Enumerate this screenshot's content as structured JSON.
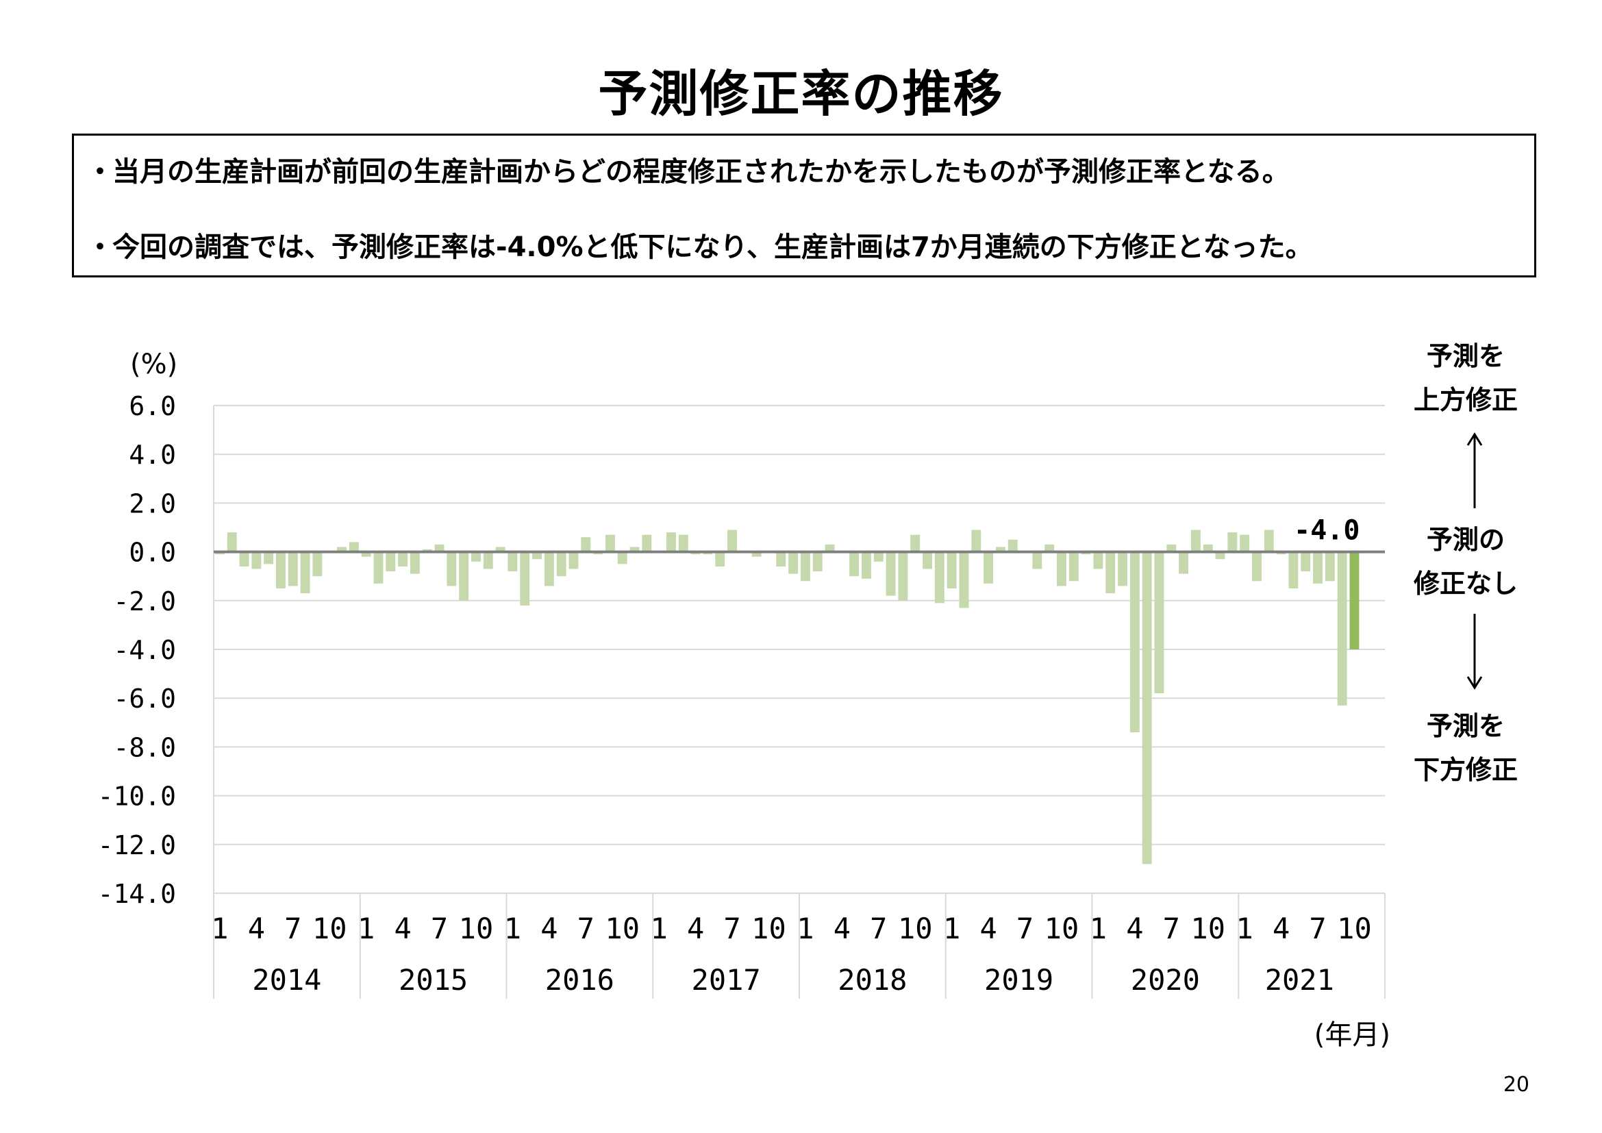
{
  "title": "予測修正率の推移",
  "notes": [
    "当月の生産計画が前回の生産計画からどの程度修正されたかを示したものが予測修正率となる。",
    "今回の調査では、予測修正率は-4.0%と低下になり、生産計画は7か月連続の下方修正となった。"
  ],
  "bullet": "・",
  "side_labels": {
    "up": "予測を\n上方修正",
    "none": "予測の\n修正なし",
    "down": "予測を\n下方修正"
  },
  "page_number": "20",
  "chart_data": {
    "type": "bar",
    "ylabel": "(%)",
    "xlabel": "(年月)",
    "ylim": [
      -14,
      6
    ],
    "yticks": [
      "6.0",
      "4.0",
      "2.0",
      "0.0",
      "-2.0",
      "-4.0",
      "-6.0",
      "-8.0",
      "-10.0",
      "-12.0",
      "-14.0"
    ],
    "grid": true,
    "month_ticks": [
      "1",
      "4",
      "7",
      "10"
    ],
    "years": [
      "2014",
      "2015",
      "2016",
      "2017",
      "2018",
      "2019",
      "2020",
      "2021"
    ],
    "start": "2014-01",
    "end": "2021-10",
    "values": [
      -0.1,
      0.8,
      -0.6,
      -0.7,
      -0.5,
      -1.5,
      -1.4,
      -1.7,
      -1.0,
      0.0,
      0.2,
      0.4,
      -0.2,
      -1.3,
      -0.8,
      -0.6,
      -0.9,
      0.1,
      0.3,
      -1.4,
      -2.0,
      -0.4,
      -0.7,
      0.2,
      -0.8,
      -2.2,
      -0.3,
      -1.4,
      -1.0,
      -0.7,
      0.6,
      -0.1,
      0.7,
      -0.5,
      0.2,
      0.7,
      0.0,
      0.8,
      0.7,
      -0.1,
      -0.1,
      -0.6,
      0.9,
      0.0,
      -0.2,
      0.0,
      -0.6,
      -0.9,
      -1.2,
      -0.8,
      0.3,
      0.0,
      -1.0,
      -1.1,
      -0.4,
      -1.8,
      -2.0,
      0.7,
      -0.7,
      -2.1,
      -1.5,
      -2.3,
      0.9,
      -1.3,
      0.2,
      0.5,
      0.0,
      -0.7,
      0.3,
      -1.4,
      -1.2,
      -0.1,
      -0.7,
      -1.7,
      -1.4,
      -7.4,
      -12.8,
      -5.8,
      0.3,
      -0.9,
      0.9,
      0.3,
      -0.3,
      0.8,
      0.7,
      -1.2,
      0.9,
      -0.1,
      -1.5,
      -0.8,
      -1.3,
      -1.2,
      -6.3,
      -4.0
    ],
    "highlight_label": "-4.0",
    "colors": {
      "bar": "#c5d9ac",
      "highlight": "#92bb5c",
      "zero_line": "#7f7f7f",
      "grid": "#d9d9d9"
    }
  }
}
